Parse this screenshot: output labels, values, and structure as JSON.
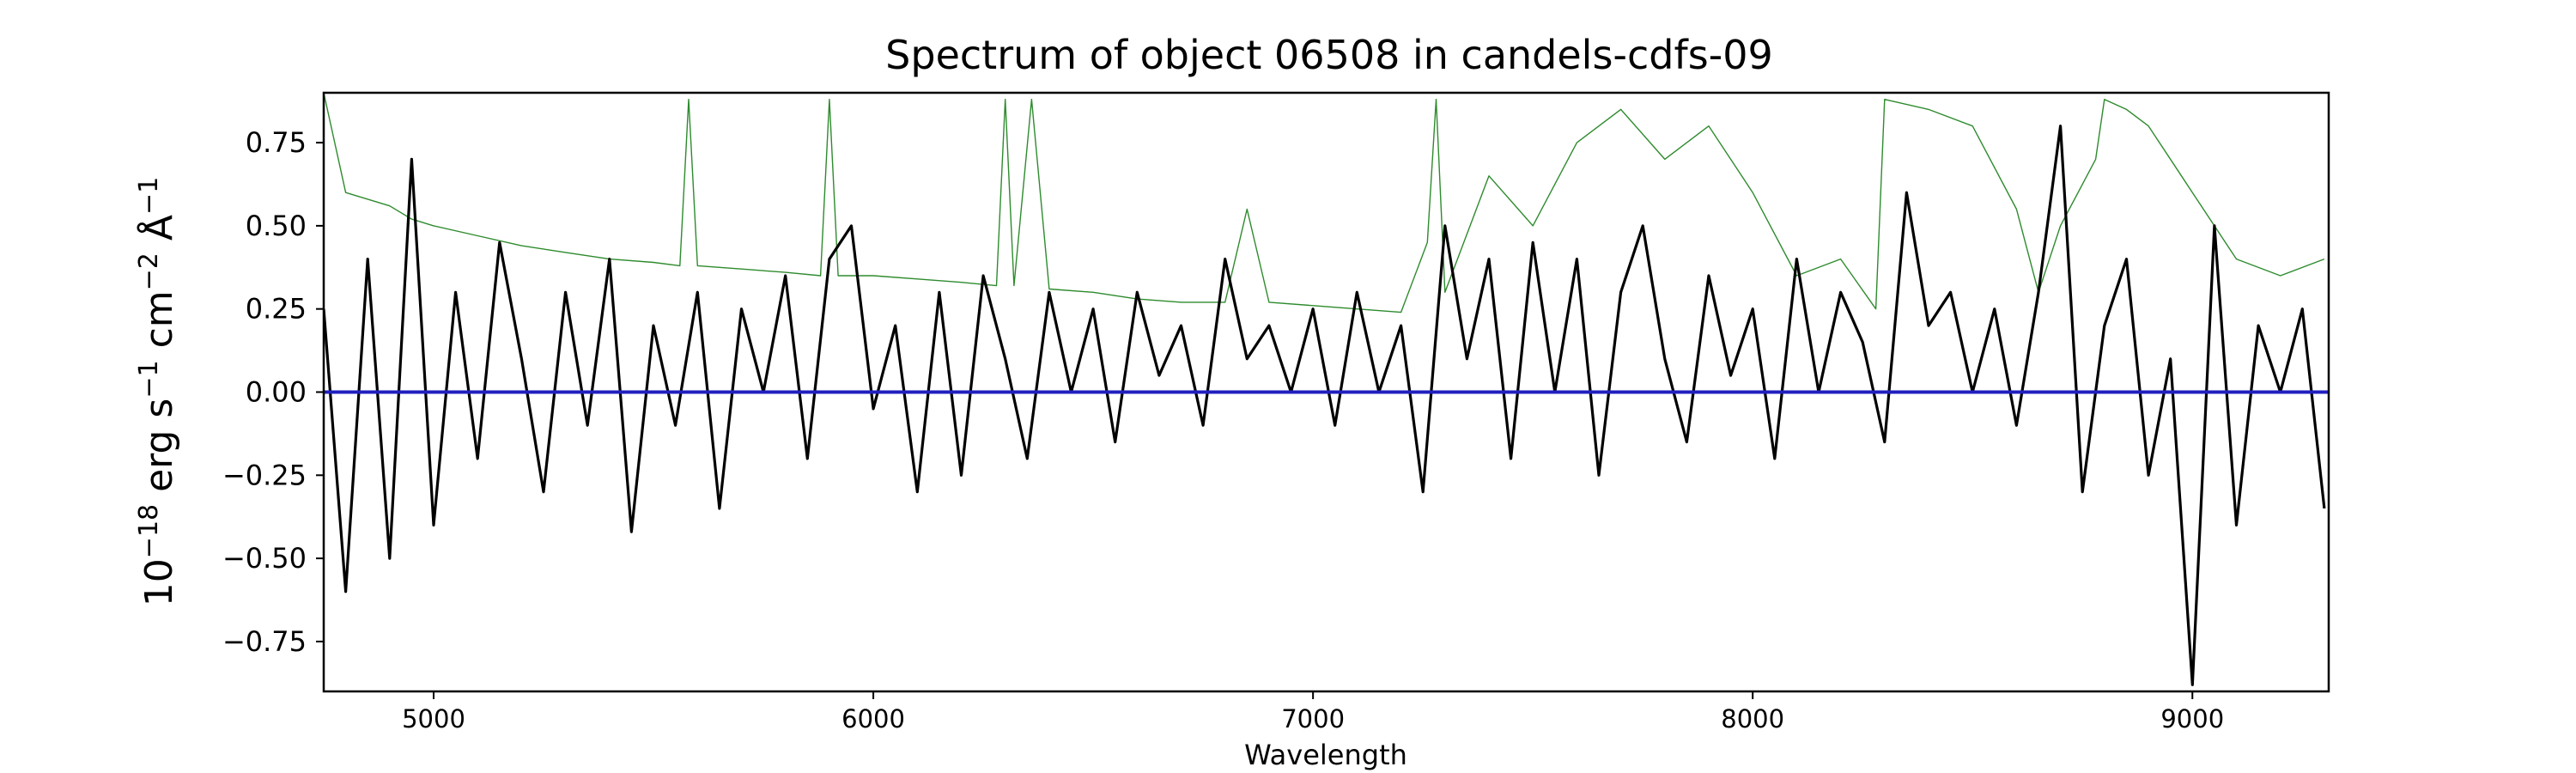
{
  "chart_data": {
    "type": "line",
    "title": "Spectrum of object 06508 in candels-cdfs-09",
    "xlabel": "Wavelength",
    "ylabel": "10^{-18} erg s^{-1} cm^{-2} Å^{-1}",
    "xlim": [
      4750,
      9310
    ],
    "ylim": [
      -0.9,
      0.9
    ],
    "x_ticks": [
      5000,
      6000,
      7000,
      8000,
      9000
    ],
    "y_ticks": [
      -0.75,
      -0.5,
      -0.25,
      0.0,
      0.25,
      0.5,
      0.75
    ],
    "x_tick_labels": [
      "5000",
      "6000",
      "7000",
      "8000",
      "9000"
    ],
    "y_tick_labels": [
      "−0.75",
      "−0.50",
      "−0.25",
      "0.00",
      "0.25",
      "0.50",
      "0.75"
    ],
    "grid": false,
    "series": [
      {
        "role": "flux",
        "color": "#000000",
        "x": [
          4750,
          4800,
          4850,
          4900,
          4950,
          5000,
          5050,
          5100,
          5150,
          5200,
          5250,
          5300,
          5350,
          5400,
          5450,
          5500,
          5550,
          5600,
          5650,
          5700,
          5750,
          5800,
          5850,
          5900,
          5950,
          6000,
          6050,
          6100,
          6150,
          6200,
          6250,
          6300,
          6350,
          6400,
          6450,
          6500,
          6550,
          6600,
          6650,
          6700,
          6750,
          6800,
          6850,
          6900,
          6950,
          7000,
          7050,
          7100,
          7150,
          7200,
          7250,
          7300,
          7350,
          7400,
          7450,
          7500,
          7550,
          7600,
          7650,
          7700,
          7750,
          7800,
          7850,
          7900,
          7950,
          8000,
          8050,
          8100,
          8150,
          8200,
          8250,
          8300,
          8350,
          8400,
          8450,
          8500,
          8550,
          8600,
          8650,
          8700,
          8750,
          8800,
          8850,
          8900,
          8950,
          9000,
          9050,
          9100,
          9150,
          9200,
          9250,
          9300
        ],
        "y": [
          0.25,
          -0.6,
          0.4,
          -0.5,
          0.7,
          -0.4,
          0.3,
          -0.2,
          0.45,
          0.1,
          -0.3,
          0.3,
          -0.1,
          0.4,
          -0.42,
          0.2,
          -0.1,
          0.3,
          -0.35,
          0.25,
          0.0,
          0.35,
          -0.2,
          0.4,
          0.5,
          -0.05,
          0.2,
          -0.3,
          0.3,
          -0.25,
          0.35,
          0.1,
          -0.2,
          0.3,
          0.0,
          0.25,
          -0.15,
          0.3,
          0.05,
          0.2,
          -0.1,
          0.4,
          0.1,
          0.2,
          0.0,
          0.25,
          -0.1,
          0.3,
          0.0,
          0.2,
          -0.3,
          0.5,
          0.1,
          0.4,
          -0.2,
          0.45,
          0.0,
          0.4,
          -0.25,
          0.3,
          0.5,
          0.1,
          -0.15,
          0.35,
          0.05,
          0.25,
          -0.2,
          0.4,
          0.0,
          0.3,
          0.15,
          -0.15,
          0.6,
          0.2,
          0.3,
          0.0,
          0.25,
          -0.1,
          0.3,
          0.8,
          -0.3,
          0.2,
          0.4,
          -0.25,
          0.1,
          -0.88,
          0.5,
          -0.4,
          0.2,
          0.0,
          0.25,
          -0.35
        ]
      },
      {
        "role": "error",
        "color": "#2e8b2e",
        "x": [
          4750,
          4800,
          4850,
          4900,
          4950,
          5000,
          5100,
          5200,
          5300,
          5400,
          5500,
          5560,
          5580,
          5600,
          5700,
          5800,
          5880,
          5900,
          5920,
          6000,
          6100,
          6200,
          6280,
          6300,
          6320,
          6360,
          6400,
          6500,
          6600,
          6700,
          6800,
          6850,
          6900,
          7000,
          7100,
          7200,
          7260,
          7280,
          7300,
          7400,
          7500,
          7600,
          7700,
          7800,
          7900,
          8000,
          8100,
          8200,
          8280,
          8300,
          8400,
          8500,
          8600,
          8650,
          8700,
          8780,
          8800,
          8850,
          8900,
          9000,
          9100,
          9200,
          9300
        ],
        "y": [
          0.9,
          0.6,
          0.58,
          0.56,
          0.52,
          0.5,
          0.47,
          0.44,
          0.42,
          0.4,
          0.39,
          0.38,
          0.88,
          0.38,
          0.37,
          0.36,
          0.35,
          0.88,
          0.35,
          0.35,
          0.34,
          0.33,
          0.32,
          0.88,
          0.32,
          0.88,
          0.31,
          0.3,
          0.28,
          0.27,
          0.27,
          0.55,
          0.27,
          0.26,
          0.25,
          0.24,
          0.45,
          0.88,
          0.3,
          0.65,
          0.5,
          0.75,
          0.85,
          0.7,
          0.8,
          0.6,
          0.35,
          0.4,
          0.25,
          0.88,
          0.85,
          0.8,
          0.55,
          0.3,
          0.5,
          0.7,
          0.88,
          0.85,
          0.8,
          0.6,
          0.4,
          0.35,
          0.4
        ]
      },
      {
        "role": "model",
        "color": "#1f1fbf",
        "x": [
          4750,
          9310
        ],
        "y": [
          0.0,
          0.0
        ]
      }
    ]
  }
}
